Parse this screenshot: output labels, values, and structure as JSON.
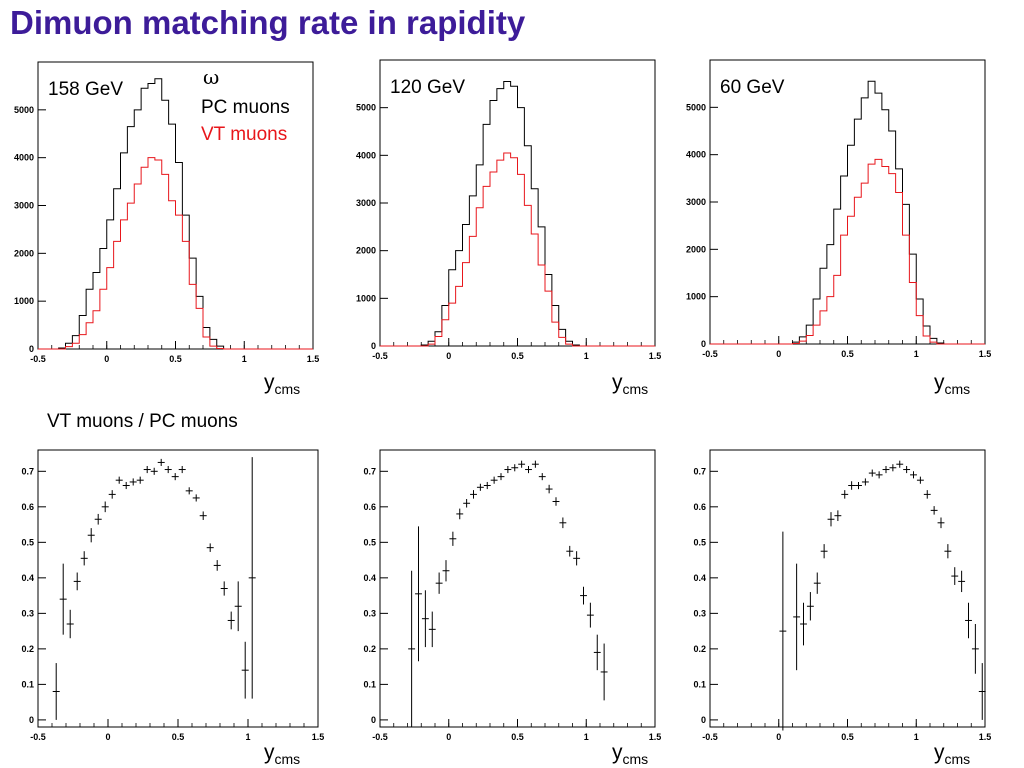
{
  "title": "Dimuon matching rate in rapidity",
  "ratio_label": "VT muons / PC muons",
  "x_axis_label": "y",
  "x_axis_sub": "cms",
  "legend": {
    "symbol": "ω",
    "pc_label": "PC muons",
    "vt_label": "VT muons",
    "pc_color": "#000000",
    "vt_color": "#e8161b"
  },
  "chart_data": [
    {
      "type": "histogram",
      "energy_label": "158 GeV",
      "xlim": [
        -0.5,
        1.5
      ],
      "ylim": [
        0,
        6000
      ],
      "x_ticks": [
        "-0.5",
        "0",
        "0.5",
        "1",
        "1.5"
      ],
      "y_ticks": [
        0,
        1000,
        2000,
        3000,
        4000,
        5000
      ],
      "bin_edges_start": -0.35,
      "bin_width": 0.05,
      "series": [
        {
          "name": "PC muons",
          "values": [
            20,
            120,
            280,
            700,
            1250,
            1600,
            2100,
            2700,
            3350,
            4100,
            4650,
            5000,
            5450,
            5550,
            5650,
            5200,
            4700,
            3900,
            2800,
            1900,
            1100,
            450,
            200,
            60,
            0,
            0,
            0,
            0
          ]
        },
        {
          "name": "VT muons",
          "values": [
            0,
            50,
            120,
            300,
            550,
            800,
            1250,
            1700,
            2250,
            2700,
            3050,
            3450,
            3800,
            4000,
            3950,
            3650,
            3100,
            2800,
            2250,
            1350,
            850,
            250,
            60,
            10,
            0,
            0,
            0,
            0
          ]
        }
      ]
    },
    {
      "type": "histogram",
      "energy_label": "120 GeV",
      "xlim": [
        -0.5,
        1.5
      ],
      "ylim": [
        0,
        6000
      ],
      "x_ticks": [
        "-0.5",
        "0",
        "0.5",
        "1",
        "1.5"
      ],
      "y_ticks": [
        0,
        1000,
        2000,
        3000,
        4000,
        5000
      ],
      "bin_edges_start": -0.2,
      "bin_width": 0.05,
      "series": [
        {
          "name": "PC muons",
          "values": [
            20,
            100,
            300,
            850,
            1600,
            2000,
            2550,
            3150,
            3800,
            4650,
            5150,
            5400,
            5550,
            5450,
            5000,
            4200,
            3300,
            2500,
            1500,
            850,
            350,
            100,
            20
          ]
        },
        {
          "name": "VT muons",
          "values": [
            0,
            40,
            200,
            550,
            900,
            1250,
            1750,
            2300,
            2900,
            3350,
            3650,
            3900,
            4050,
            3950,
            3600,
            2950,
            2350,
            1700,
            1150,
            500,
            180,
            40,
            0
          ]
        }
      ]
    },
    {
      "type": "histogram",
      "energy_label": "60 GeV",
      "xlim": [
        -0.5,
        1.5
      ],
      "ylim": [
        0,
        6000
      ],
      "x_ticks": [
        "-0.5",
        "0",
        "0.5",
        "1",
        "1.5"
      ],
      "y_ticks": [
        0,
        1000,
        2000,
        3000,
        4000,
        5000
      ],
      "bin_edges_start": 0.1,
      "bin_width": 0.05,
      "series": [
        {
          "name": "PC muons",
          "values": [
            40,
            150,
            400,
            950,
            1600,
            2100,
            2850,
            3550,
            4200,
            4750,
            5200,
            5550,
            5300,
            4950,
            4500,
            3700,
            2950,
            1900,
            950,
            380,
            120,
            20
          ]
        },
        {
          "name": "VT muons",
          "values": [
            10,
            60,
            180,
            400,
            700,
            1000,
            1450,
            2300,
            2700,
            3100,
            3400,
            3800,
            3900,
            3750,
            3600,
            3200,
            2300,
            1300,
            600,
            170,
            40,
            0
          ]
        }
      ]
    },
    {
      "type": "errorbar",
      "energy_label": "",
      "xlim": [
        -0.5,
        1.5
      ],
      "ylim": [
        -0.02,
        0.76
      ],
      "x_ticks": [
        "-0.5",
        "0",
        "0.5",
        "1",
        "1.5"
      ],
      "y_ticks": [
        0,
        0.1,
        0.2,
        0.3,
        0.4,
        0.5,
        0.6,
        0.7
      ],
      "points": [
        {
          "x": -0.37,
          "y": 0.08,
          "err": 0.08
        },
        {
          "x": -0.32,
          "y": 0.34,
          "err": 0.1
        },
        {
          "x": -0.27,
          "y": 0.27,
          "err": 0.04
        },
        {
          "x": -0.22,
          "y": 0.39,
          "err": 0.025
        },
        {
          "x": -0.17,
          "y": 0.455,
          "err": 0.02
        },
        {
          "x": -0.12,
          "y": 0.52,
          "err": 0.02
        },
        {
          "x": -0.07,
          "y": 0.565,
          "err": 0.015
        },
        {
          "x": -0.02,
          "y": 0.6,
          "err": 0.015
        },
        {
          "x": 0.03,
          "y": 0.635,
          "err": 0.012
        },
        {
          "x": 0.08,
          "y": 0.675,
          "err": 0.01
        },
        {
          "x": 0.13,
          "y": 0.66,
          "err": 0.01
        },
        {
          "x": 0.18,
          "y": 0.67,
          "err": 0.01
        },
        {
          "x": 0.23,
          "y": 0.675,
          "err": 0.01
        },
        {
          "x": 0.28,
          "y": 0.705,
          "err": 0.01
        },
        {
          "x": 0.33,
          "y": 0.7,
          "err": 0.01
        },
        {
          "x": 0.38,
          "y": 0.725,
          "err": 0.01
        },
        {
          "x": 0.43,
          "y": 0.705,
          "err": 0.01
        },
        {
          "x": 0.48,
          "y": 0.685,
          "err": 0.01
        },
        {
          "x": 0.53,
          "y": 0.705,
          "err": 0.01
        },
        {
          "x": 0.58,
          "y": 0.645,
          "err": 0.01
        },
        {
          "x": 0.63,
          "y": 0.625,
          "err": 0.01
        },
        {
          "x": 0.68,
          "y": 0.575,
          "err": 0.012
        },
        {
          "x": 0.73,
          "y": 0.485,
          "err": 0.012
        },
        {
          "x": 0.78,
          "y": 0.435,
          "err": 0.015
        },
        {
          "x": 0.83,
          "y": 0.37,
          "err": 0.02
        },
        {
          "x": 0.88,
          "y": 0.28,
          "err": 0.025
        },
        {
          "x": 0.93,
          "y": 0.32,
          "err": 0.07
        },
        {
          "x": 0.98,
          "y": 0.14,
          "err": 0.08
        },
        {
          "x": 1.03,
          "y": 0.4,
          "err": 0.34
        }
      ]
    },
    {
      "type": "errorbar",
      "energy_label": "",
      "xlim": [
        -0.5,
        1.5
      ],
      "ylim": [
        -0.02,
        0.76
      ],
      "x_ticks": [
        "-0.5",
        "0",
        "0.5",
        "1",
        "1.5"
      ],
      "y_ticks": [
        0,
        0.1,
        0.2,
        0.3,
        0.4,
        0.5,
        0.6,
        0.7
      ],
      "points": [
        {
          "x": -0.27,
          "y": 0.2,
          "err": 0.22
        },
        {
          "x": -0.22,
          "y": 0.355,
          "err": 0.19
        },
        {
          "x": -0.17,
          "y": 0.285,
          "err": 0.08
        },
        {
          "x": -0.12,
          "y": 0.255,
          "err": 0.05
        },
        {
          "x": -0.07,
          "y": 0.385,
          "err": 0.03
        },
        {
          "x": -0.02,
          "y": 0.42,
          "err": 0.03
        },
        {
          "x": 0.03,
          "y": 0.51,
          "err": 0.02
        },
        {
          "x": 0.08,
          "y": 0.58,
          "err": 0.015
        },
        {
          "x": 0.13,
          "y": 0.61,
          "err": 0.012
        },
        {
          "x": 0.18,
          "y": 0.635,
          "err": 0.012
        },
        {
          "x": 0.23,
          "y": 0.655,
          "err": 0.01
        },
        {
          "x": 0.28,
          "y": 0.66,
          "err": 0.01
        },
        {
          "x": 0.33,
          "y": 0.675,
          "err": 0.01
        },
        {
          "x": 0.38,
          "y": 0.685,
          "err": 0.01
        },
        {
          "x": 0.43,
          "y": 0.705,
          "err": 0.01
        },
        {
          "x": 0.48,
          "y": 0.71,
          "err": 0.01
        },
        {
          "x": 0.53,
          "y": 0.72,
          "err": 0.01
        },
        {
          "x": 0.58,
          "y": 0.705,
          "err": 0.01
        },
        {
          "x": 0.63,
          "y": 0.72,
          "err": 0.01
        },
        {
          "x": 0.68,
          "y": 0.685,
          "err": 0.01
        },
        {
          "x": 0.73,
          "y": 0.65,
          "err": 0.012
        },
        {
          "x": 0.78,
          "y": 0.615,
          "err": 0.012
        },
        {
          "x": 0.83,
          "y": 0.555,
          "err": 0.015
        },
        {
          "x": 0.88,
          "y": 0.475,
          "err": 0.015
        },
        {
          "x": 0.93,
          "y": 0.455,
          "err": 0.02
        },
        {
          "x": 0.98,
          "y": 0.35,
          "err": 0.025
        },
        {
          "x": 1.03,
          "y": 0.295,
          "err": 0.035
        },
        {
          "x": 1.08,
          "y": 0.19,
          "err": 0.05
        },
        {
          "x": 1.13,
          "y": 0.135,
          "err": 0.08
        }
      ]
    },
    {
      "type": "errorbar",
      "energy_label": "",
      "xlim": [
        -0.5,
        1.5
      ],
      "ylim": [
        -0.02,
        0.76
      ],
      "x_ticks": [
        "-0.5",
        "0",
        "0.5",
        "1",
        "1.5"
      ],
      "y_ticks": [
        0,
        0.1,
        0.2,
        0.3,
        0.4,
        0.5,
        0.6,
        0.7
      ],
      "points": [
        {
          "x": 0.03,
          "y": 0.25,
          "err": 0.28
        },
        {
          "x": 0.13,
          "y": 0.29,
          "err": 0.15
        },
        {
          "x": 0.18,
          "y": 0.27,
          "err": 0.06
        },
        {
          "x": 0.23,
          "y": 0.32,
          "err": 0.04
        },
        {
          "x": 0.28,
          "y": 0.385,
          "err": 0.03
        },
        {
          "x": 0.33,
          "y": 0.475,
          "err": 0.02
        },
        {
          "x": 0.38,
          "y": 0.565,
          "err": 0.02
        },
        {
          "x": 0.43,
          "y": 0.575,
          "err": 0.015
        },
        {
          "x": 0.48,
          "y": 0.635,
          "err": 0.012
        },
        {
          "x": 0.53,
          "y": 0.66,
          "err": 0.012
        },
        {
          "x": 0.58,
          "y": 0.66,
          "err": 0.01
        },
        {
          "x": 0.63,
          "y": 0.67,
          "err": 0.01
        },
        {
          "x": 0.68,
          "y": 0.695,
          "err": 0.01
        },
        {
          "x": 0.73,
          "y": 0.69,
          "err": 0.01
        },
        {
          "x": 0.78,
          "y": 0.705,
          "err": 0.01
        },
        {
          "x": 0.83,
          "y": 0.71,
          "err": 0.01
        },
        {
          "x": 0.88,
          "y": 0.72,
          "err": 0.01
        },
        {
          "x": 0.93,
          "y": 0.705,
          "err": 0.01
        },
        {
          "x": 0.98,
          "y": 0.69,
          "err": 0.01
        },
        {
          "x": 1.03,
          "y": 0.675,
          "err": 0.01
        },
        {
          "x": 1.08,
          "y": 0.635,
          "err": 0.012
        },
        {
          "x": 1.13,
          "y": 0.59,
          "err": 0.012
        },
        {
          "x": 1.18,
          "y": 0.555,
          "err": 0.015
        },
        {
          "x": 1.23,
          "y": 0.475,
          "err": 0.02
        },
        {
          "x": 1.28,
          "y": 0.405,
          "err": 0.025
        },
        {
          "x": 1.33,
          "y": 0.39,
          "err": 0.03
        },
        {
          "x": 1.38,
          "y": 0.28,
          "err": 0.05
        },
        {
          "x": 1.43,
          "y": 0.2,
          "err": 0.07
        },
        {
          "x": 1.48,
          "y": 0.08,
          "err": 0.08
        }
      ]
    }
  ]
}
